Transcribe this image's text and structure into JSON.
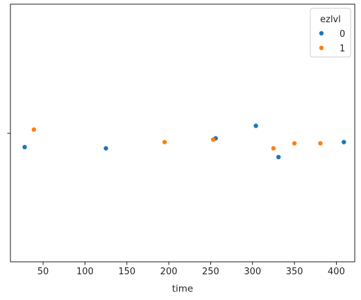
{
  "chart_data": {
    "type": "scatter",
    "title": "",
    "xlabel": "time",
    "ylabel": "",
    "xlim": [
      11,
      422
    ],
    "x_ticks": [
      50,
      100,
      150,
      200,
      250,
      300,
      350,
      400
    ],
    "y_ticks": [
      ""
    ],
    "grid": false,
    "legend": {
      "title": "ezlvl",
      "placement": "top-right",
      "entries": [
        {
          "label": "0",
          "color": "#1f77b4"
        },
        {
          "label": "1",
          "color": "#ff7f0e"
        }
      ]
    },
    "series": [
      {
        "name": "0",
        "color": "#1f77b4",
        "points": [
          {
            "x": 28,
            "y": -0.11
          },
          {
            "x": 125,
            "y": -0.12
          },
          {
            "x": 256,
            "y": -0.04
          },
          {
            "x": 304,
            "y": 0.06
          },
          {
            "x": 331,
            "y": -0.19
          },
          {
            "x": 409,
            "y": -0.07
          }
        ]
      },
      {
        "name": "1",
        "color": "#ff7f0e",
        "points": [
          {
            "x": 39,
            "y": 0.03
          },
          {
            "x": 195,
            "y": -0.07
          },
          {
            "x": 253,
            "y": -0.05
          },
          {
            "x": 325,
            "y": -0.12
          },
          {
            "x": 350,
            "y": -0.08
          },
          {
            "x": 381,
            "y": -0.08
          }
        ]
      }
    ]
  }
}
